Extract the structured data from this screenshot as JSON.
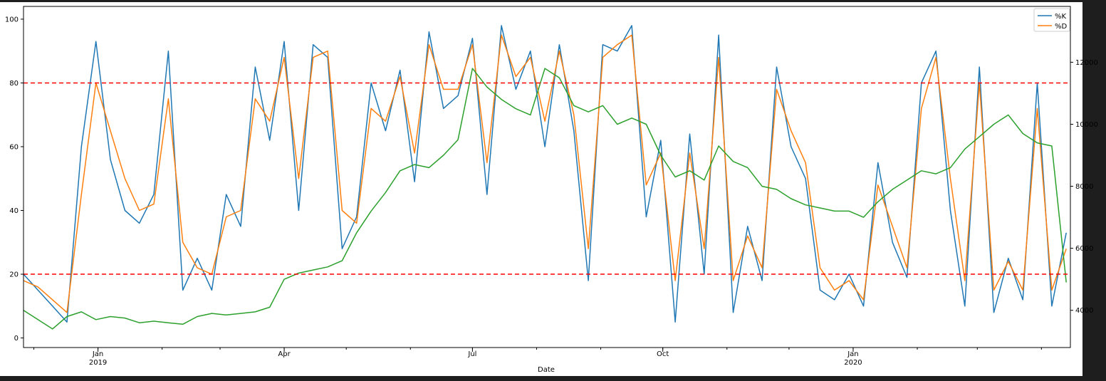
{
  "chart_data": {
    "type": "line",
    "title": "",
    "xlabel": "Date",
    "ylabel_left": "",
    "ylabel_right": "",
    "x_range": [
      "2018-11-26",
      "2020-04-15"
    ],
    "ylim_left": [
      -3,
      104
    ],
    "ylim_right": [
      2800,
      13800
    ],
    "yticks_left": [
      0,
      20,
      40,
      60,
      80,
      100
    ],
    "yticks_right": [
      4000,
      6000,
      8000,
      10000,
      12000
    ],
    "xticks": [
      {
        "date": "2019-01-01",
        "label": "Jan",
        "sublabel": "2019"
      },
      {
        "date": "2019-04-01",
        "label": "Apr",
        "sublabel": ""
      },
      {
        "date": "2019-07-01",
        "label": "Jul",
        "sublabel": ""
      },
      {
        "date": "2019-10-01",
        "label": "Oct",
        "sublabel": ""
      },
      {
        "date": "2020-01-01",
        "label": "Jan",
        "sublabel": "2020"
      }
    ],
    "reference_lines": [
      {
        "y": 80,
        "color": "#ff0000",
        "style": "dashed",
        "axis": "left"
      },
      {
        "y": 20,
        "color": "#ff0000",
        "style": "dashed",
        "axis": "left"
      }
    ],
    "legend": {
      "position": "top-right",
      "entries": [
        "%K",
        "%D"
      ]
    },
    "grid": false,
    "series": [
      {
        "name": "%K",
        "color": "#1f77b4",
        "axis": "left",
        "x": [
          "2018-11-26",
          "2018-12-03",
          "2018-12-10",
          "2018-12-17",
          "2018-12-24",
          "2018-12-31",
          "2019-01-07",
          "2019-01-14",
          "2019-01-21",
          "2019-01-28",
          "2019-02-04",
          "2019-02-11",
          "2019-02-18",
          "2019-02-25",
          "2019-03-04",
          "2019-03-11",
          "2019-03-18",
          "2019-03-25",
          "2019-04-01",
          "2019-04-08",
          "2019-04-15",
          "2019-04-22",
          "2019-04-29",
          "2019-05-06",
          "2019-05-13",
          "2019-05-20",
          "2019-05-27",
          "2019-06-03",
          "2019-06-10",
          "2019-06-17",
          "2019-06-24",
          "2019-07-01",
          "2019-07-08",
          "2019-07-15",
          "2019-07-22",
          "2019-07-29",
          "2019-08-05",
          "2019-08-12",
          "2019-08-19",
          "2019-08-26",
          "2019-09-02",
          "2019-09-09",
          "2019-09-16",
          "2019-09-23",
          "2019-09-30",
          "2019-10-07",
          "2019-10-14",
          "2019-10-21",
          "2019-10-28",
          "2019-11-04",
          "2019-11-11",
          "2019-11-18",
          "2019-11-25",
          "2019-12-02",
          "2019-12-09",
          "2019-12-16",
          "2019-12-23",
          "2019-12-30",
          "2020-01-06",
          "2020-01-13",
          "2020-01-20",
          "2020-01-27",
          "2020-02-03",
          "2020-02-10",
          "2020-02-17",
          "2020-02-24",
          "2020-03-02",
          "2020-03-09",
          "2020-03-16",
          "2020-03-23",
          "2020-03-30",
          "2020-04-06",
          "2020-04-13"
        ],
        "values": [
          20,
          15,
          10,
          5,
          60,
          93,
          56,
          40,
          36,
          45,
          90,
          15,
          25,
          15,
          45,
          35,
          85,
          62,
          93,
          40,
          92,
          88,
          28,
          38,
          80,
          65,
          84,
          49,
          96,
          72,
          76,
          94,
          45,
          98,
          78,
          90,
          60,
          92,
          65,
          18,
          92,
          90,
          98,
          38,
          62,
          5,
          64,
          20,
          95,
          8,
          35,
          18,
          85,
          60,
          50,
          15,
          12,
          20,
          10,
          55,
          30,
          19,
          80,
          90,
          40,
          10,
          85,
          8,
          25,
          12,
          80,
          10,
          33
        ]
      },
      {
        "name": "%D",
        "color": "#ff7f0e",
        "axis": "left",
        "x": [
          "2018-11-26",
          "2018-12-03",
          "2018-12-10",
          "2018-12-17",
          "2018-12-24",
          "2018-12-31",
          "2019-01-07",
          "2019-01-14",
          "2019-01-21",
          "2019-01-28",
          "2019-02-04",
          "2019-02-11",
          "2019-02-18",
          "2019-02-25",
          "2019-03-04",
          "2019-03-11",
          "2019-03-18",
          "2019-03-25",
          "2019-04-01",
          "2019-04-08",
          "2019-04-15",
          "2019-04-22",
          "2019-04-29",
          "2019-05-06",
          "2019-05-13",
          "2019-05-20",
          "2019-05-27",
          "2019-06-03",
          "2019-06-10",
          "2019-06-17",
          "2019-06-24",
          "2019-07-01",
          "2019-07-08",
          "2019-07-15",
          "2019-07-22",
          "2019-07-29",
          "2019-08-05",
          "2019-08-12",
          "2019-08-19",
          "2019-08-26",
          "2019-09-02",
          "2019-09-09",
          "2019-09-16",
          "2019-09-23",
          "2019-09-30",
          "2019-10-07",
          "2019-10-14",
          "2019-10-21",
          "2019-10-28",
          "2019-11-04",
          "2019-11-11",
          "2019-11-18",
          "2019-11-25",
          "2019-12-02",
          "2019-12-09",
          "2019-12-16",
          "2019-12-23",
          "2019-12-30",
          "2020-01-06",
          "2020-01-13",
          "2020-01-20",
          "2020-01-27",
          "2020-02-03",
          "2020-02-10",
          "2020-02-17",
          "2020-02-24",
          "2020-03-02",
          "2020-03-09",
          "2020-03-16",
          "2020-03-23",
          "2020-03-30",
          "2020-04-06",
          "2020-04-13"
        ],
        "values": [
          18,
          16,
          12,
          8,
          45,
          80,
          65,
          50,
          40,
          42,
          75,
          30,
          22,
          20,
          38,
          40,
          75,
          68,
          88,
          50,
          88,
          90,
          40,
          36,
          72,
          68,
          82,
          58,
          92,
          78,
          78,
          92,
          55,
          95,
          82,
          88,
          68,
          90,
          70,
          28,
          88,
          92,
          95,
          48,
          58,
          18,
          58,
          28,
          88,
          18,
          32,
          22,
          78,
          65,
          55,
          22,
          15,
          18,
          12,
          48,
          35,
          22,
          72,
          88,
          50,
          18,
          80,
          15,
          24,
          15,
          72,
          15,
          28
        ]
      },
      {
        "name": "",
        "color": "#2ca02c",
        "axis": "right",
        "x": [
          "2018-11-26",
          "2018-12-03",
          "2018-12-10",
          "2018-12-17",
          "2018-12-24",
          "2018-12-31",
          "2019-01-07",
          "2019-01-14",
          "2019-01-21",
          "2019-01-28",
          "2019-02-04",
          "2019-02-11",
          "2019-02-18",
          "2019-02-25",
          "2019-03-04",
          "2019-03-11",
          "2019-03-18",
          "2019-03-25",
          "2019-04-01",
          "2019-04-08",
          "2019-04-15",
          "2019-04-22",
          "2019-04-29",
          "2019-05-06",
          "2019-05-13",
          "2019-05-20",
          "2019-05-27",
          "2019-06-03",
          "2019-06-10",
          "2019-06-17",
          "2019-06-24",
          "2019-07-01",
          "2019-07-08",
          "2019-07-15",
          "2019-07-22",
          "2019-07-29",
          "2019-08-05",
          "2019-08-12",
          "2019-08-19",
          "2019-08-26",
          "2019-09-02",
          "2019-09-09",
          "2019-09-16",
          "2019-09-23",
          "2019-09-30",
          "2019-10-07",
          "2019-10-14",
          "2019-10-21",
          "2019-10-28",
          "2019-11-04",
          "2019-11-11",
          "2019-11-18",
          "2019-11-25",
          "2019-12-02",
          "2019-12-09",
          "2019-12-16",
          "2019-12-23",
          "2019-12-30",
          "2020-01-06",
          "2020-01-13",
          "2020-01-20",
          "2020-01-27",
          "2020-02-03",
          "2020-02-10",
          "2020-02-17",
          "2020-02-24",
          "2020-03-02",
          "2020-03-09",
          "2020-03-16",
          "2020-03-23",
          "2020-03-30",
          "2020-04-06",
          "2020-04-13"
        ],
        "values": [
          4000,
          3700,
          3400,
          3800,
          3950,
          3700,
          3800,
          3750,
          3600,
          3650,
          3600,
          3550,
          3800,
          3900,
          3850,
          3900,
          3950,
          4100,
          5000,
          5200,
          5300,
          5400,
          5600,
          6500,
          7200,
          7800,
          8500,
          8700,
          8600,
          9000,
          9500,
          11800,
          11200,
          10800,
          10500,
          10300,
          11800,
          11500,
          10600,
          10400,
          10600,
          10000,
          10200,
          10000,
          9000,
          8300,
          8500,
          8200,
          9300,
          8800,
          8600,
          8000,
          7900,
          7600,
          7400,
          7300,
          7200,
          7200,
          7000,
          7500,
          7900,
          8200,
          8500,
          8400,
          8600,
          9200,
          9600,
          10000,
          10300,
          9700,
          9400,
          9300,
          4900
        ]
      }
    ]
  }
}
